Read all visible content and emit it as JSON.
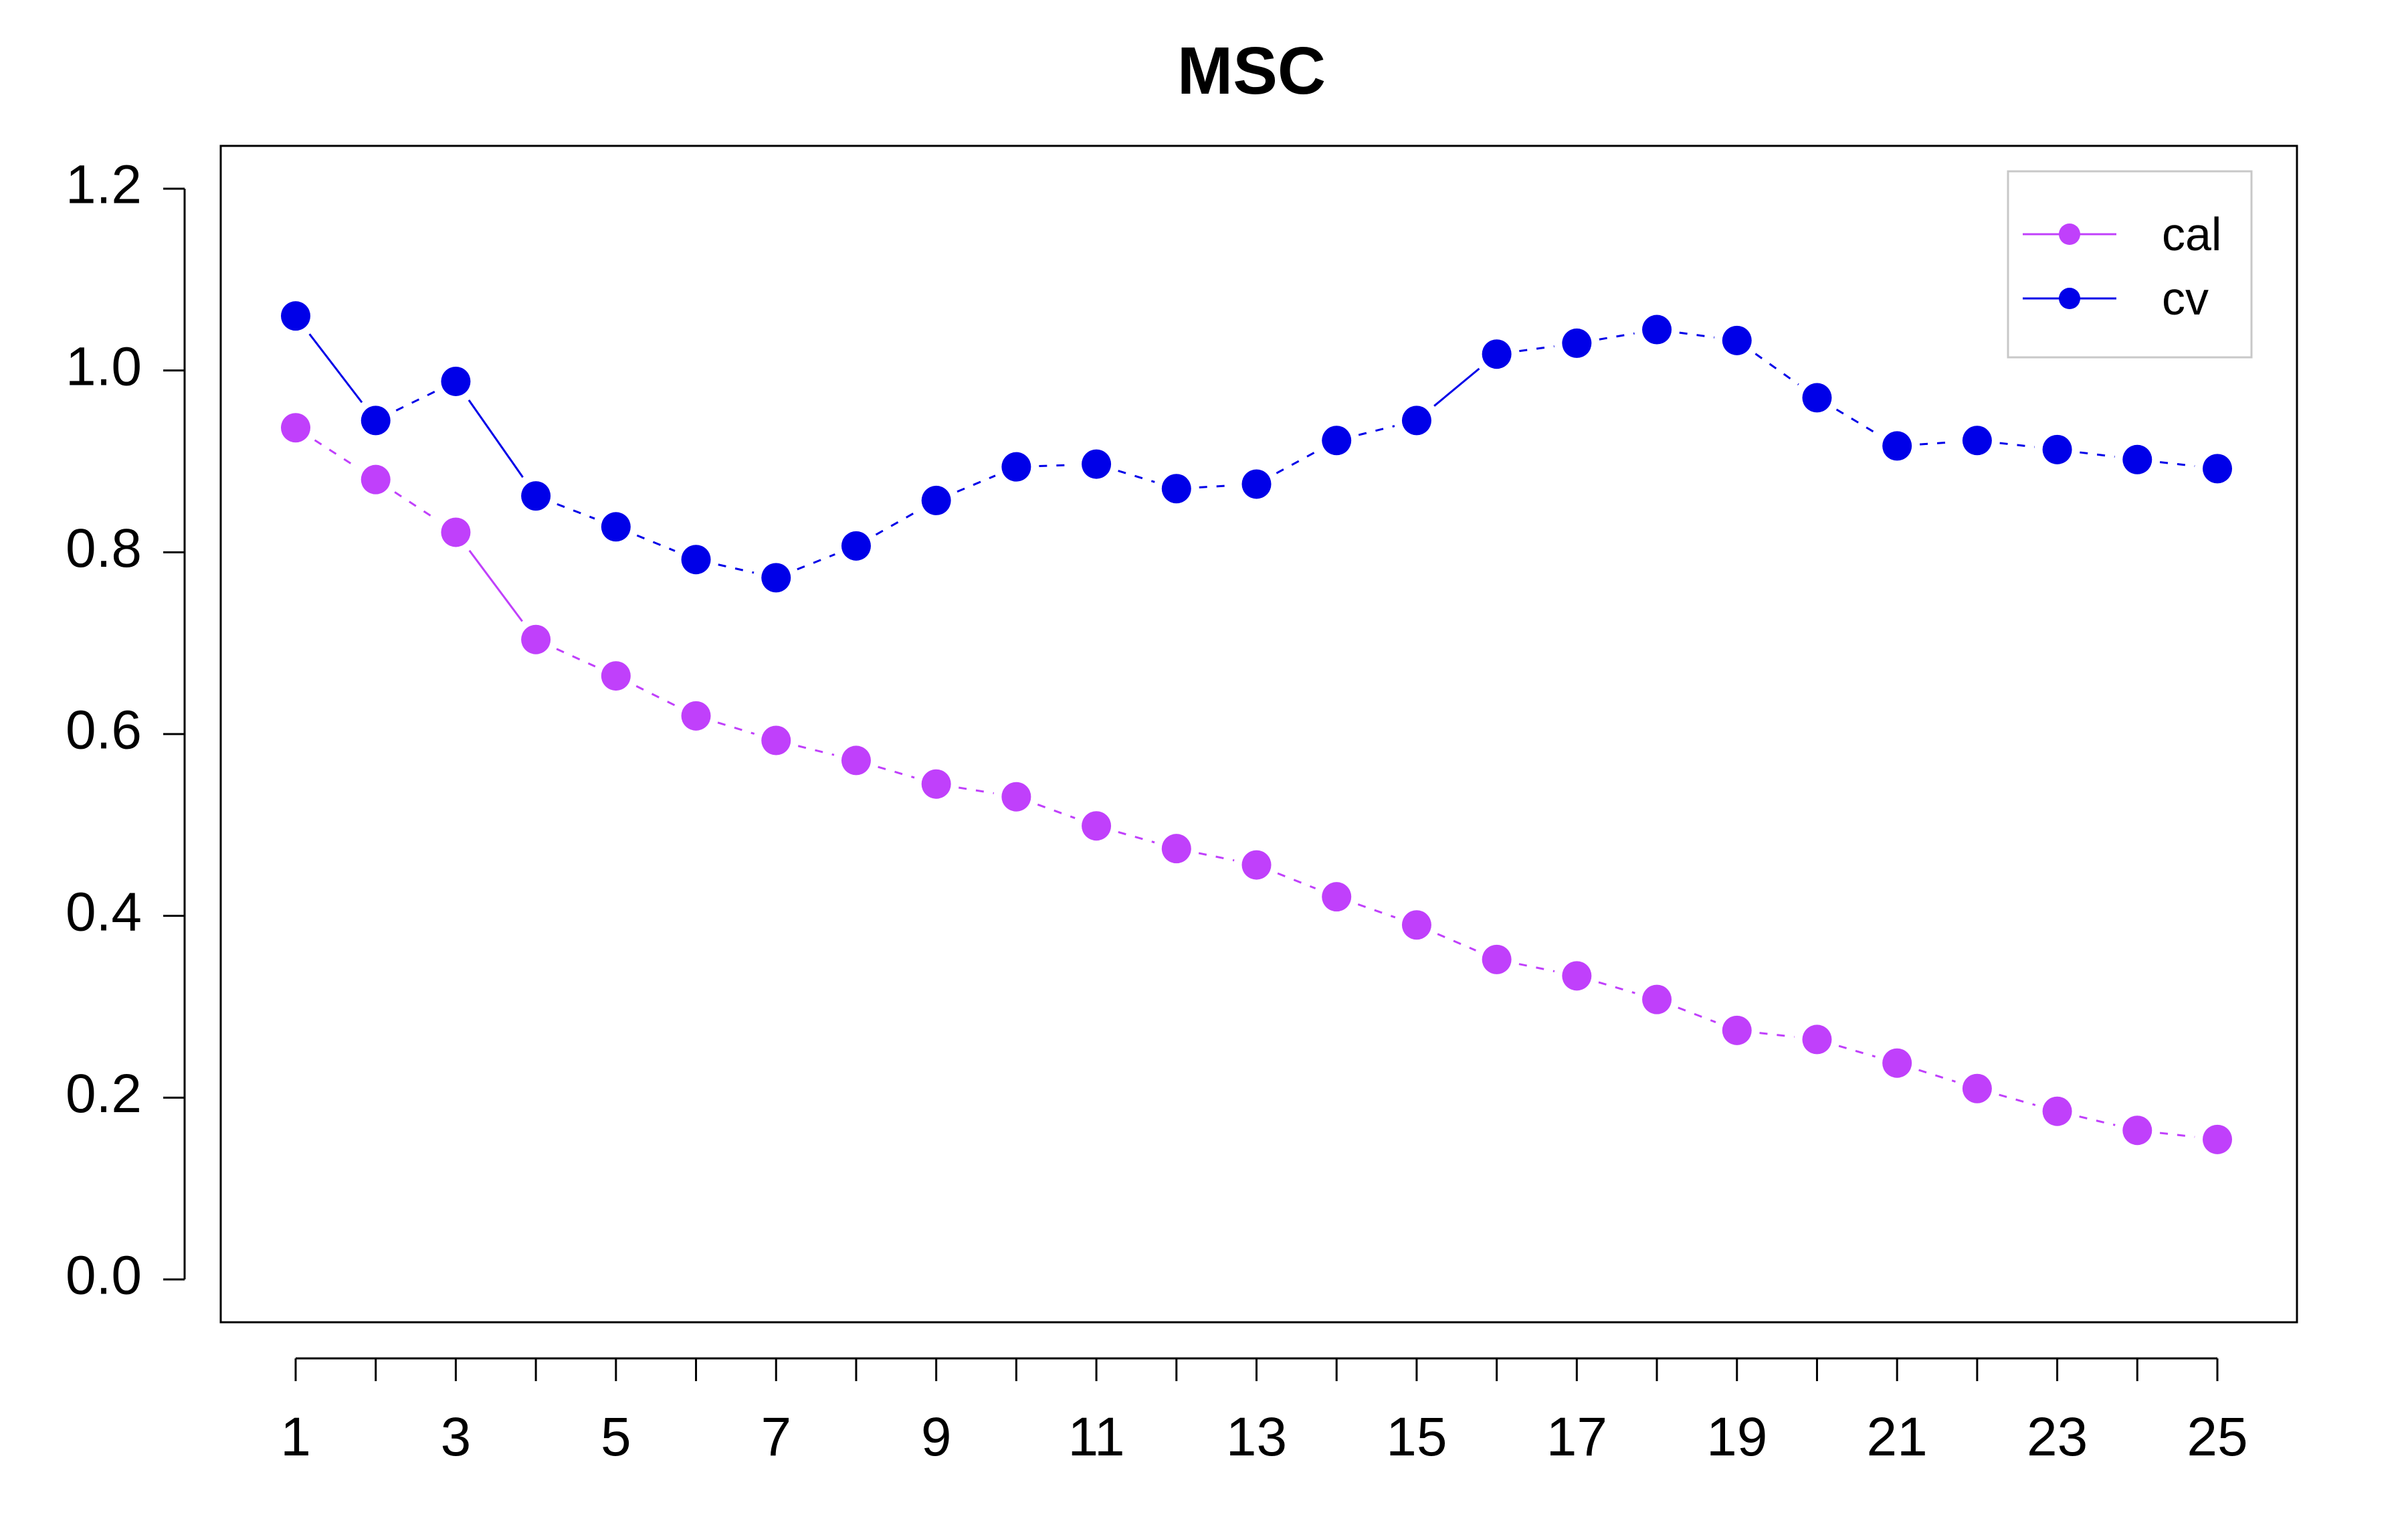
{
  "chart_data": {
    "type": "line",
    "title": "MSC",
    "xlabel": "",
    "ylabel": "",
    "x": [
      1,
      2,
      3,
      4,
      5,
      6,
      7,
      8,
      9,
      10,
      11,
      12,
      13,
      14,
      15,
      16,
      17,
      18,
      19,
      20,
      21,
      22,
      23,
      24,
      25
    ],
    "x_tick_labels": [
      "1",
      "3",
      "5",
      "7",
      "9",
      "11",
      "13",
      "15",
      "17",
      "19",
      "21",
      "23",
      "25"
    ],
    "y_tick_labels": [
      "0.0",
      "0.2",
      "0.4",
      "0.6",
      "0.8",
      "1.0",
      "1.2"
    ],
    "ylim": [
      0,
      1.2
    ],
    "xlim": [
      1,
      25
    ],
    "grid": false,
    "legend_position": "top-right",
    "series": [
      {
        "name": "cal",
        "color": "#c040fb",
        "values": [
          0.937,
          0.88,
          0.822,
          0.704,
          0.664,
          0.62,
          0.593,
          0.571,
          0.545,
          0.531,
          0.499,
          0.474,
          0.456,
          0.421,
          0.39,
          0.352,
          0.334,
          0.308,
          0.274,
          0.264,
          0.238,
          0.21,
          0.185,
          0.164,
          0.154
        ]
      },
      {
        "name": "cv",
        "color": "#0000e8",
        "values": [
          1.06,
          0.945,
          0.988,
          0.862,
          0.828,
          0.792,
          0.772,
          0.807,
          0.857,
          0.894,
          0.897,
          0.87,
          0.875,
          0.923,
          0.945,
          1.018,
          1.03,
          1.045,
          1.033,
          0.97,
          0.917,
          0.923,
          0.913,
          0.902,
          0.892
        ]
      }
    ]
  }
}
